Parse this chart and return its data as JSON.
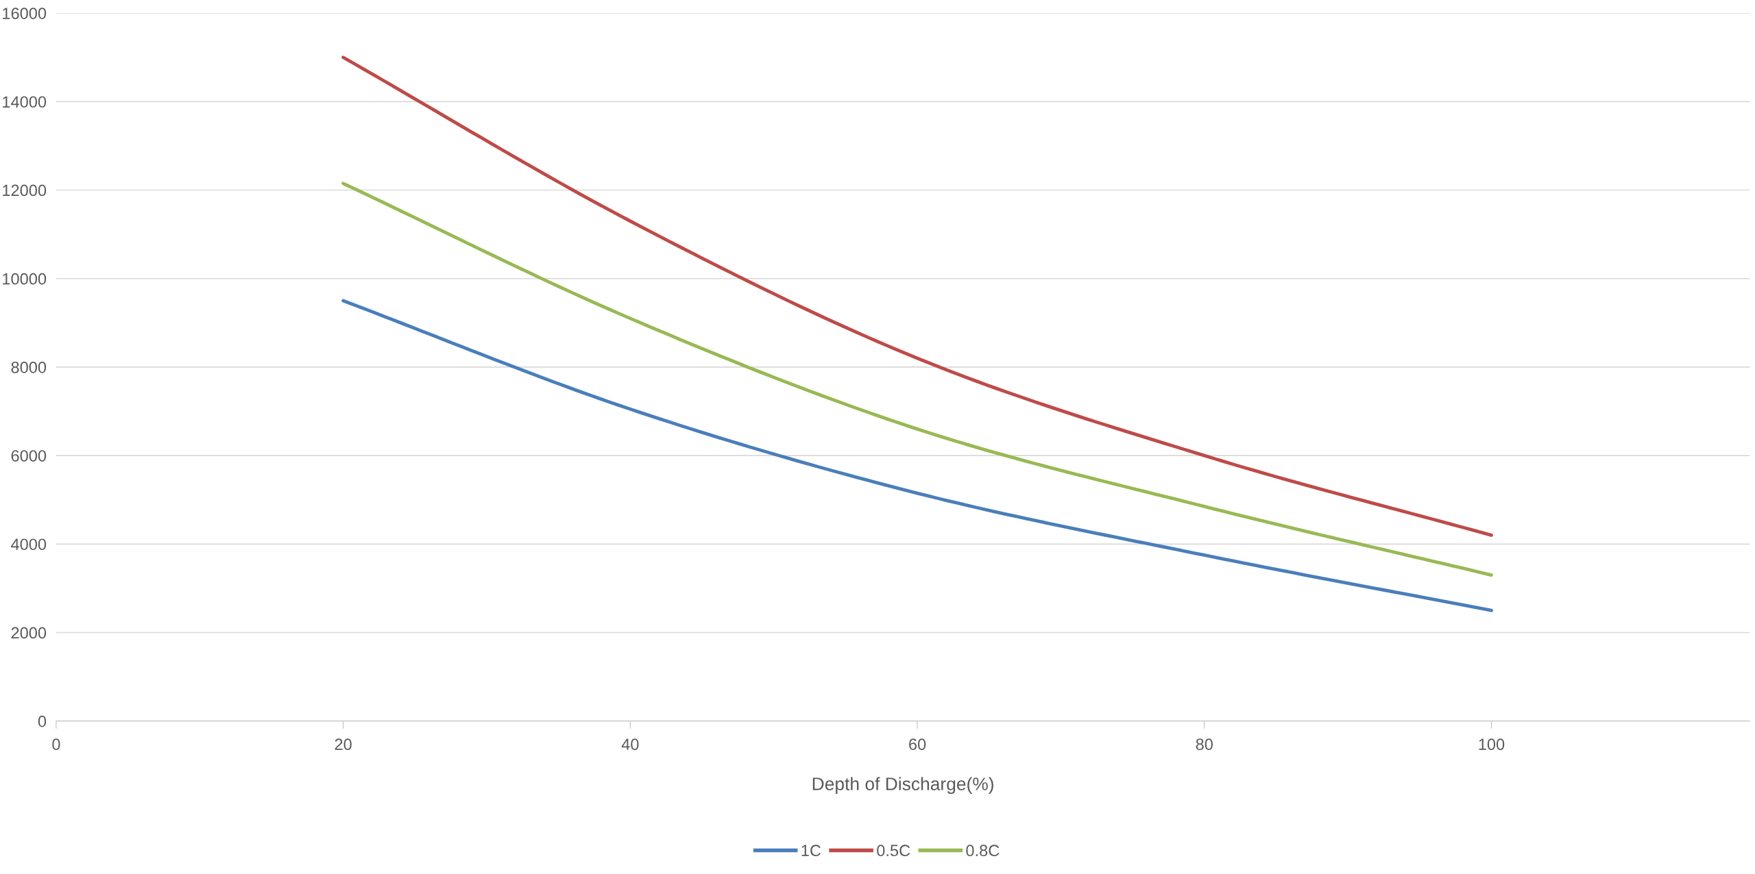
{
  "chart_data": {
    "type": "line",
    "xlabel": "Depth of Discharge(%)",
    "x": [
      20,
      40,
      60,
      80,
      100
    ],
    "series": [
      {
        "name": "1C",
        "color": "#4a7ebb",
        "values": [
          9500,
          7050,
          5150,
          3750,
          2500
        ]
      },
      {
        "name": "0.5C",
        "color": "#be4b48",
        "values": [
          15000,
          11300,
          8200,
          6000,
          4200
        ]
      },
      {
        "name": "0.8C",
        "color": "#98b954",
        "values": [
          12150,
          9100,
          6600,
          4850,
          3300
        ]
      }
    ],
    "xlim": [
      0,
      118
    ],
    "xticks": [
      0,
      20,
      40,
      60,
      80,
      100
    ],
    "ylim": [
      0,
      16000
    ],
    "yticks": [
      0,
      2000,
      4000,
      6000,
      8000,
      10000,
      12000,
      14000,
      16000
    ],
    "grid": "y",
    "legend": "bottom",
    "marker": "none",
    "line_style": "solid"
  }
}
